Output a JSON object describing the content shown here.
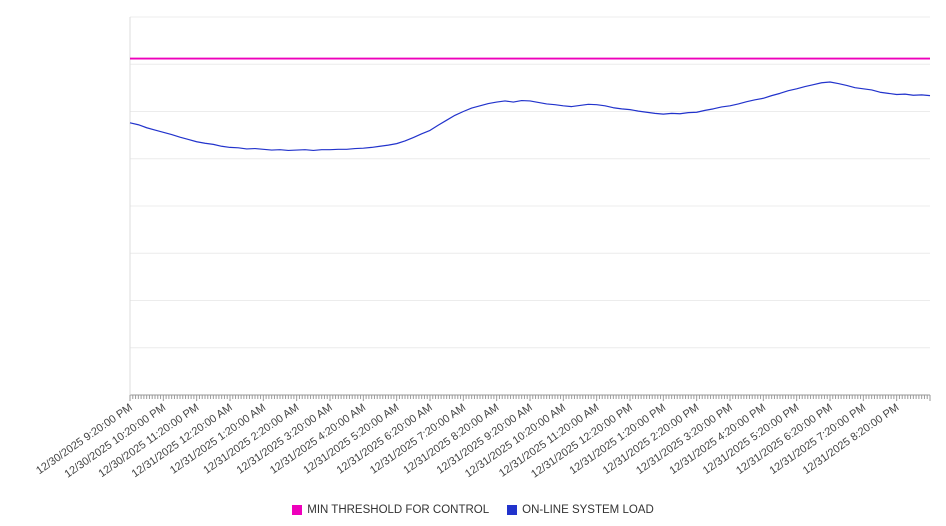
{
  "chart_data": {
    "type": "line",
    "title": "",
    "xlabel": "",
    "ylabel": "",
    "ylim": [
      0,
      100
    ],
    "grid": true,
    "grid_divisions": 8,
    "legend_position": "bottom",
    "x_labels": [
      "12/30/2025 9:20:00 PM",
      "12/30/2025 10:20:00 PM",
      "12/30/2025 11:20:00 PM",
      "12/31/2025 12:20:00 AM",
      "12/31/2025 1:20:00 AM",
      "12/31/2025 2:20:00 AM",
      "12/31/2025 3:20:00 AM",
      "12/31/2025 4:20:00 AM",
      "12/31/2025 5:20:00 AM",
      "12/31/2025 6:20:00 AM",
      "12/31/2025 7:20:00 AM",
      "12/31/2025 8:20:00 AM",
      "12/31/2025 9:20:00 AM",
      "12/31/2025 10:20:00 AM",
      "12/31/2025 11:20:00 AM",
      "12/31/2025 12:20:00 PM",
      "12/31/2025 1:20:00 PM",
      "12/31/2025 2:20:00 PM",
      "12/31/2025 3:20:00 PM",
      "12/31/2025 4:20:00 PM",
      "12/31/2025 5:20:00 PM",
      "12/31/2025 6:20:00 PM",
      "12/31/2025 7:20:00 PM",
      "12/31/2025 8:20:00 PM"
    ],
    "minor_ticks_per_hour": 12,
    "series": [
      {
        "name": "MIN THRESHOLD FOR CONTROL",
        "color": "#ee00bb",
        "kind": "constant",
        "value": 89
      },
      {
        "name": "ON-LINE SYSTEM LOAD",
        "color": "#2233cc",
        "kind": "line",
        "points_per_hour": 4,
        "values": [
          72.0,
          71.5,
          70.7,
          70.1,
          69.5,
          68.9,
          68.2,
          67.6,
          67.0,
          66.6,
          66.3,
          65.8,
          65.5,
          65.4,
          65.1,
          65.2,
          65.0,
          64.8,
          64.9,
          64.7,
          64.8,
          64.9,
          64.7,
          64.9,
          64.9,
          65.0,
          65.0,
          65.2,
          65.3,
          65.5,
          65.8,
          66.1,
          66.5,
          67.2,
          68.1,
          69.1,
          70.0,
          71.4,
          72.7,
          74.0,
          75.0,
          75.9,
          76.5,
          77.1,
          77.5,
          77.8,
          77.5,
          77.9,
          77.8,
          77.4,
          77.0,
          76.8,
          76.5,
          76.3,
          76.6,
          76.9,
          76.8,
          76.5,
          76.0,
          75.7,
          75.5,
          75.1,
          74.8,
          74.5,
          74.3,
          74.5,
          74.4,
          74.7,
          74.8,
          75.3,
          75.7,
          76.2,
          76.5,
          77.0,
          77.6,
          78.1,
          78.5,
          79.2,
          79.8,
          80.5,
          81.0,
          81.6,
          82.1,
          82.6,
          82.8,
          82.4,
          81.9,
          81.3,
          81.0,
          80.7,
          80.1,
          79.8,
          79.5,
          79.6,
          79.3,
          79.4,
          79.2
        ]
      }
    ]
  },
  "legend": {
    "items": [
      {
        "label": "MIN THRESHOLD FOR CONTROL",
        "color": "#ee00bb"
      },
      {
        "label": "ON-LINE SYSTEM LOAD",
        "color": "#2233cc"
      }
    ]
  }
}
